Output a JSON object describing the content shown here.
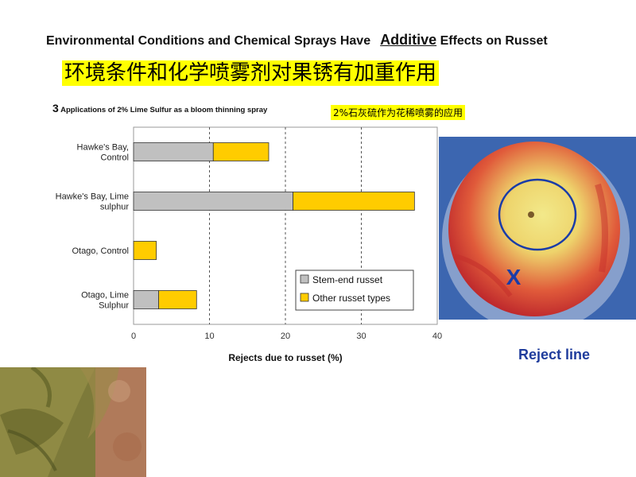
{
  "header": {
    "title_part1": "Environmental Conditions and Chemical Sprays Have",
    "title_highlight": "Additive",
    "title_part2": "Effects on Russet",
    "title_cn": "环境条件和化学喷雾剂对果锈有加重作用"
  },
  "subtitle": {
    "number": "3",
    "text": "Applications of 2% Lime Sulfur as a bloom thinning spray",
    "cn": "2%石灰硫作为花稀喷雾的应用"
  },
  "chart_data": {
    "type": "bar",
    "orientation": "horizontal",
    "stacked": true,
    "categories": [
      "Hawke's Bay, Control",
      "Hawke's Bay, Lime sulphur",
      "Otago, Control",
      "Otago, Lime Sulphur"
    ],
    "series": [
      {
        "name": "Stem-end russet",
        "values": [
          10.5,
          21,
          0,
          3.3
        ],
        "color": "#c0c0c0"
      },
      {
        "name": "Other russet types",
        "values": [
          7.3,
          16,
          3,
          5
        ],
        "color": "#ffcc00"
      }
    ],
    "xlabel": "Rejects due to russet (%)",
    "ylabel": "",
    "xlim": [
      0,
      40
    ],
    "xticks": [
      "0",
      "10",
      "20",
      "30",
      "40"
    ],
    "grid": "vertical dashed",
    "legend": "bottom-right"
  },
  "photo": {
    "marker": "X",
    "caption": "Reject line"
  }
}
